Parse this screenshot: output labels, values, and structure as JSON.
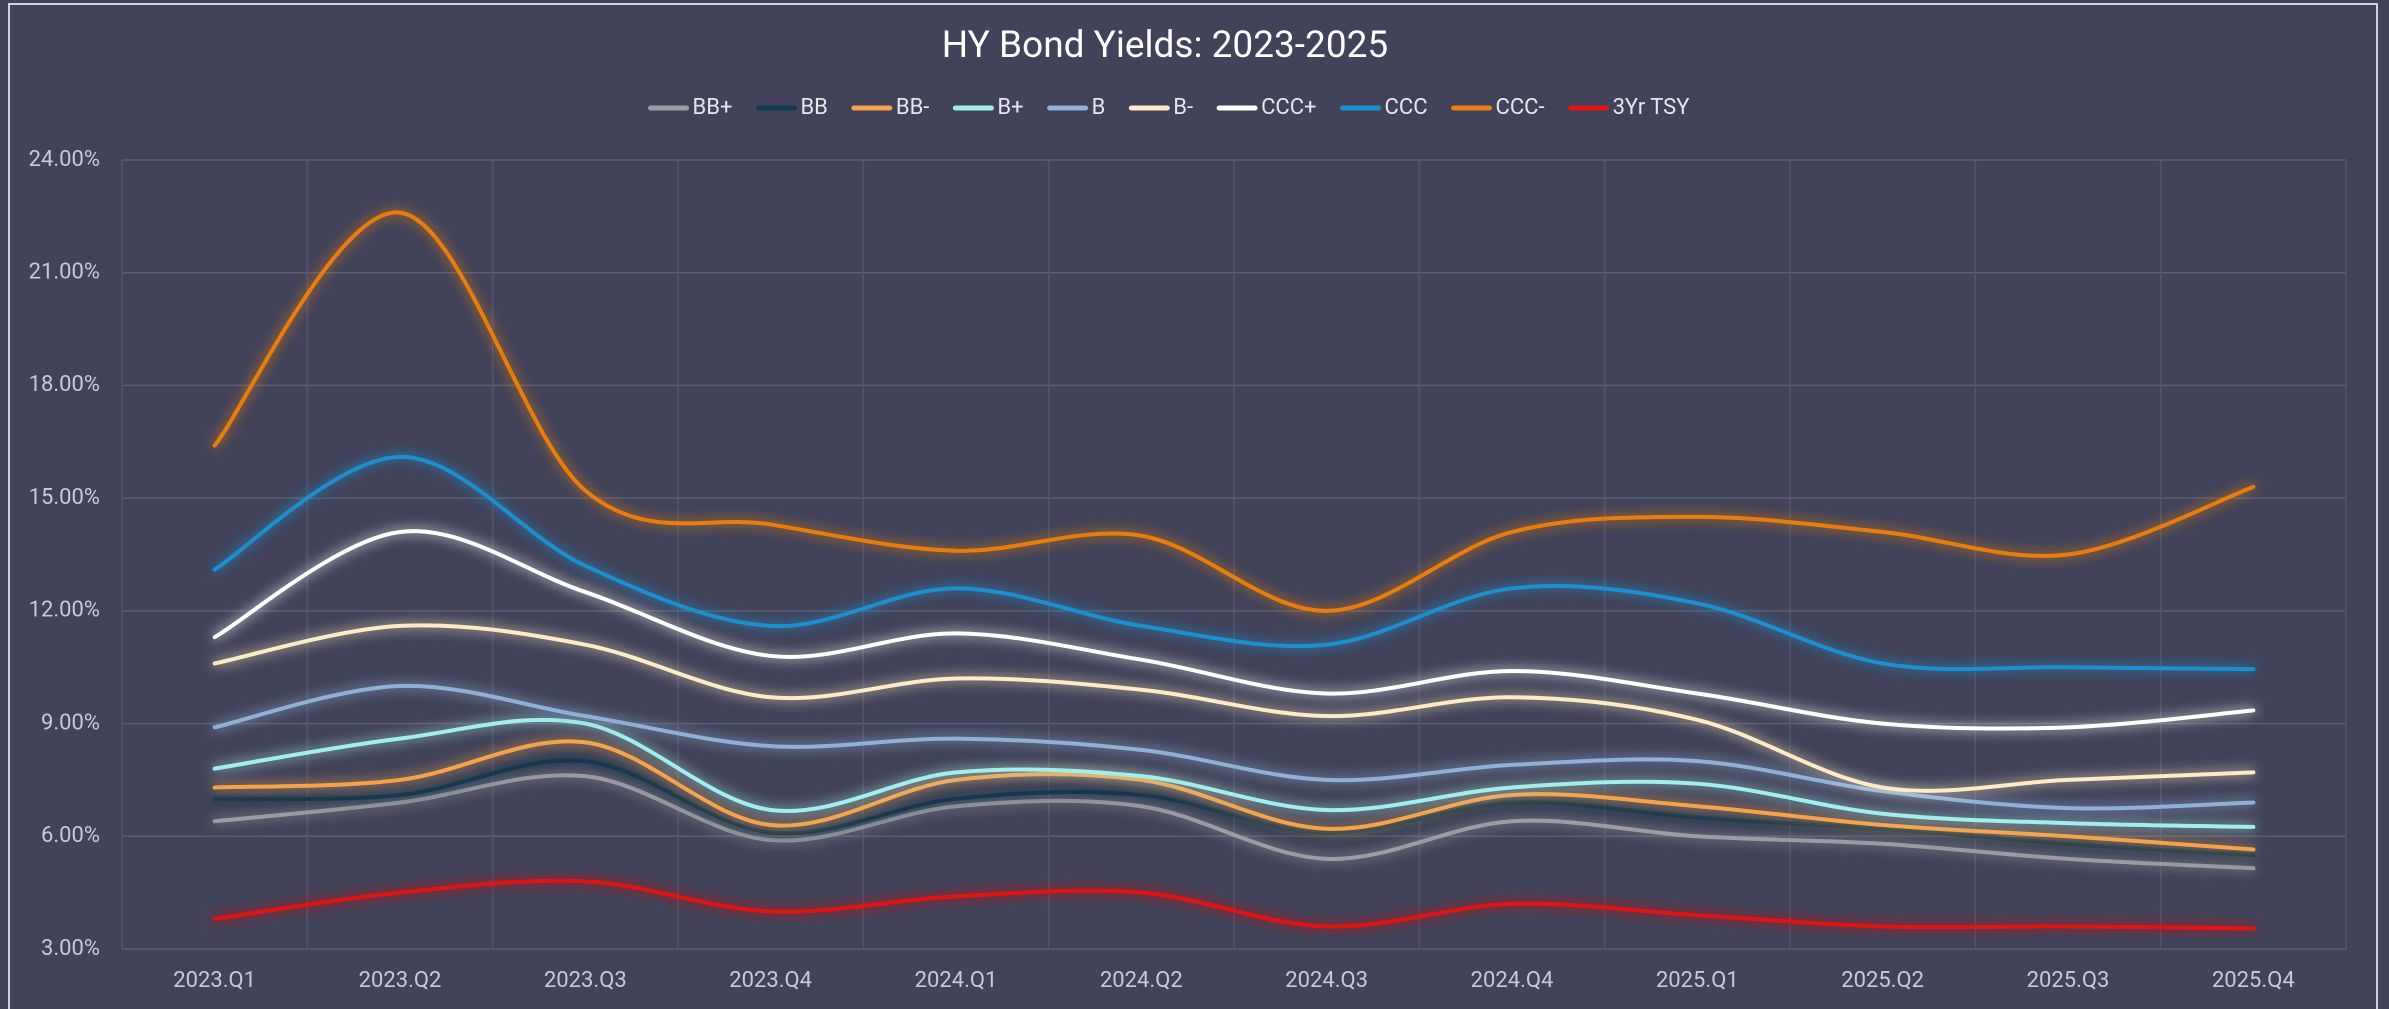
{
  "chart_data": {
    "type": "line",
    "title": "HY Bond Yields: 2023-2025",
    "categories": [
      "2023.Q1",
      "2023.Q2",
      "2023.Q3",
      "2023.Q4",
      "2024.Q1",
      "2024.Q2",
      "2024.Q3",
      "2024.Q4",
      "2025.Q1",
      "2025.Q2",
      "2025.Q3",
      "2025.Q4"
    ],
    "series": [
      {
        "name": "BB+",
        "color": "#9c9ca4",
        "values": [
          6.4,
          6.9,
          7.6,
          5.9,
          6.8,
          6.8,
          5.4,
          6.4,
          6.0,
          5.8,
          5.4,
          5.15
        ]
      },
      {
        "name": "BB",
        "color": "#13394d",
        "values": [
          7.0,
          7.1,
          8.0,
          6.1,
          7.0,
          7.1,
          6.1,
          6.9,
          6.5,
          6.2,
          5.8,
          5.5
        ]
      },
      {
        "name": "BB-",
        "color": "#f4a34c",
        "values": [
          7.3,
          7.5,
          8.5,
          6.3,
          7.5,
          7.5,
          6.2,
          7.1,
          6.8,
          6.3,
          6.0,
          5.65
        ]
      },
      {
        "name": "B+",
        "color": "#a2eeee",
        "values": [
          7.8,
          8.6,
          9.0,
          6.7,
          7.7,
          7.6,
          6.7,
          7.3,
          7.4,
          6.6,
          6.35,
          6.25
        ]
      },
      {
        "name": "B",
        "color": "#8fb0d8",
        "values": [
          8.9,
          10.0,
          9.2,
          8.4,
          8.6,
          8.3,
          7.5,
          7.9,
          8.0,
          7.2,
          6.75,
          6.9
        ]
      },
      {
        "name": "B-",
        "color": "#fdebc6",
        "values": [
          10.6,
          11.6,
          11.1,
          9.7,
          10.2,
          9.9,
          9.2,
          9.7,
          9.1,
          7.3,
          7.5,
          7.7
        ]
      },
      {
        "name": "CCC+",
        "color": "#ffffff",
        "values": [
          11.3,
          14.1,
          12.5,
          10.8,
          11.4,
          10.7,
          9.8,
          10.4,
          9.8,
          9.0,
          8.9,
          9.35
        ]
      },
      {
        "name": "CCC",
        "color": "#1a8fcf",
        "values": [
          13.1,
          16.1,
          13.2,
          11.6,
          12.6,
          11.6,
          11.1,
          12.6,
          12.2,
          10.6,
          10.5,
          10.45
        ]
      },
      {
        "name": "CCC-",
        "color": "#e87d10",
        "values": [
          16.4,
          22.6,
          15.2,
          14.3,
          13.6,
          14.0,
          12.0,
          14.1,
          14.5,
          14.1,
          13.5,
          15.3
        ]
      },
      {
        "name": "3Yr TSY",
        "color": "#e01515",
        "values": [
          3.8,
          4.5,
          4.8,
          4.0,
          4.4,
          4.5,
          3.6,
          4.2,
          3.9,
          3.6,
          3.6,
          3.55
        ]
      }
    ],
    "ylim": [
      3,
      24
    ],
    "yticks": [
      {
        "value": 3,
        "label": "3.00%"
      },
      {
        "value": 6,
        "label": "6.00%"
      },
      {
        "value": 9,
        "label": "9.00%"
      },
      {
        "value": 12,
        "label": "12.00%"
      },
      {
        "value": 15,
        "label": "15.00%"
      },
      {
        "value": 18,
        "label": "18.00%"
      },
      {
        "value": 21,
        "label": "21.00%"
      },
      {
        "value": 24,
        "label": "24.00%"
      }
    ],
    "grid": true
  }
}
